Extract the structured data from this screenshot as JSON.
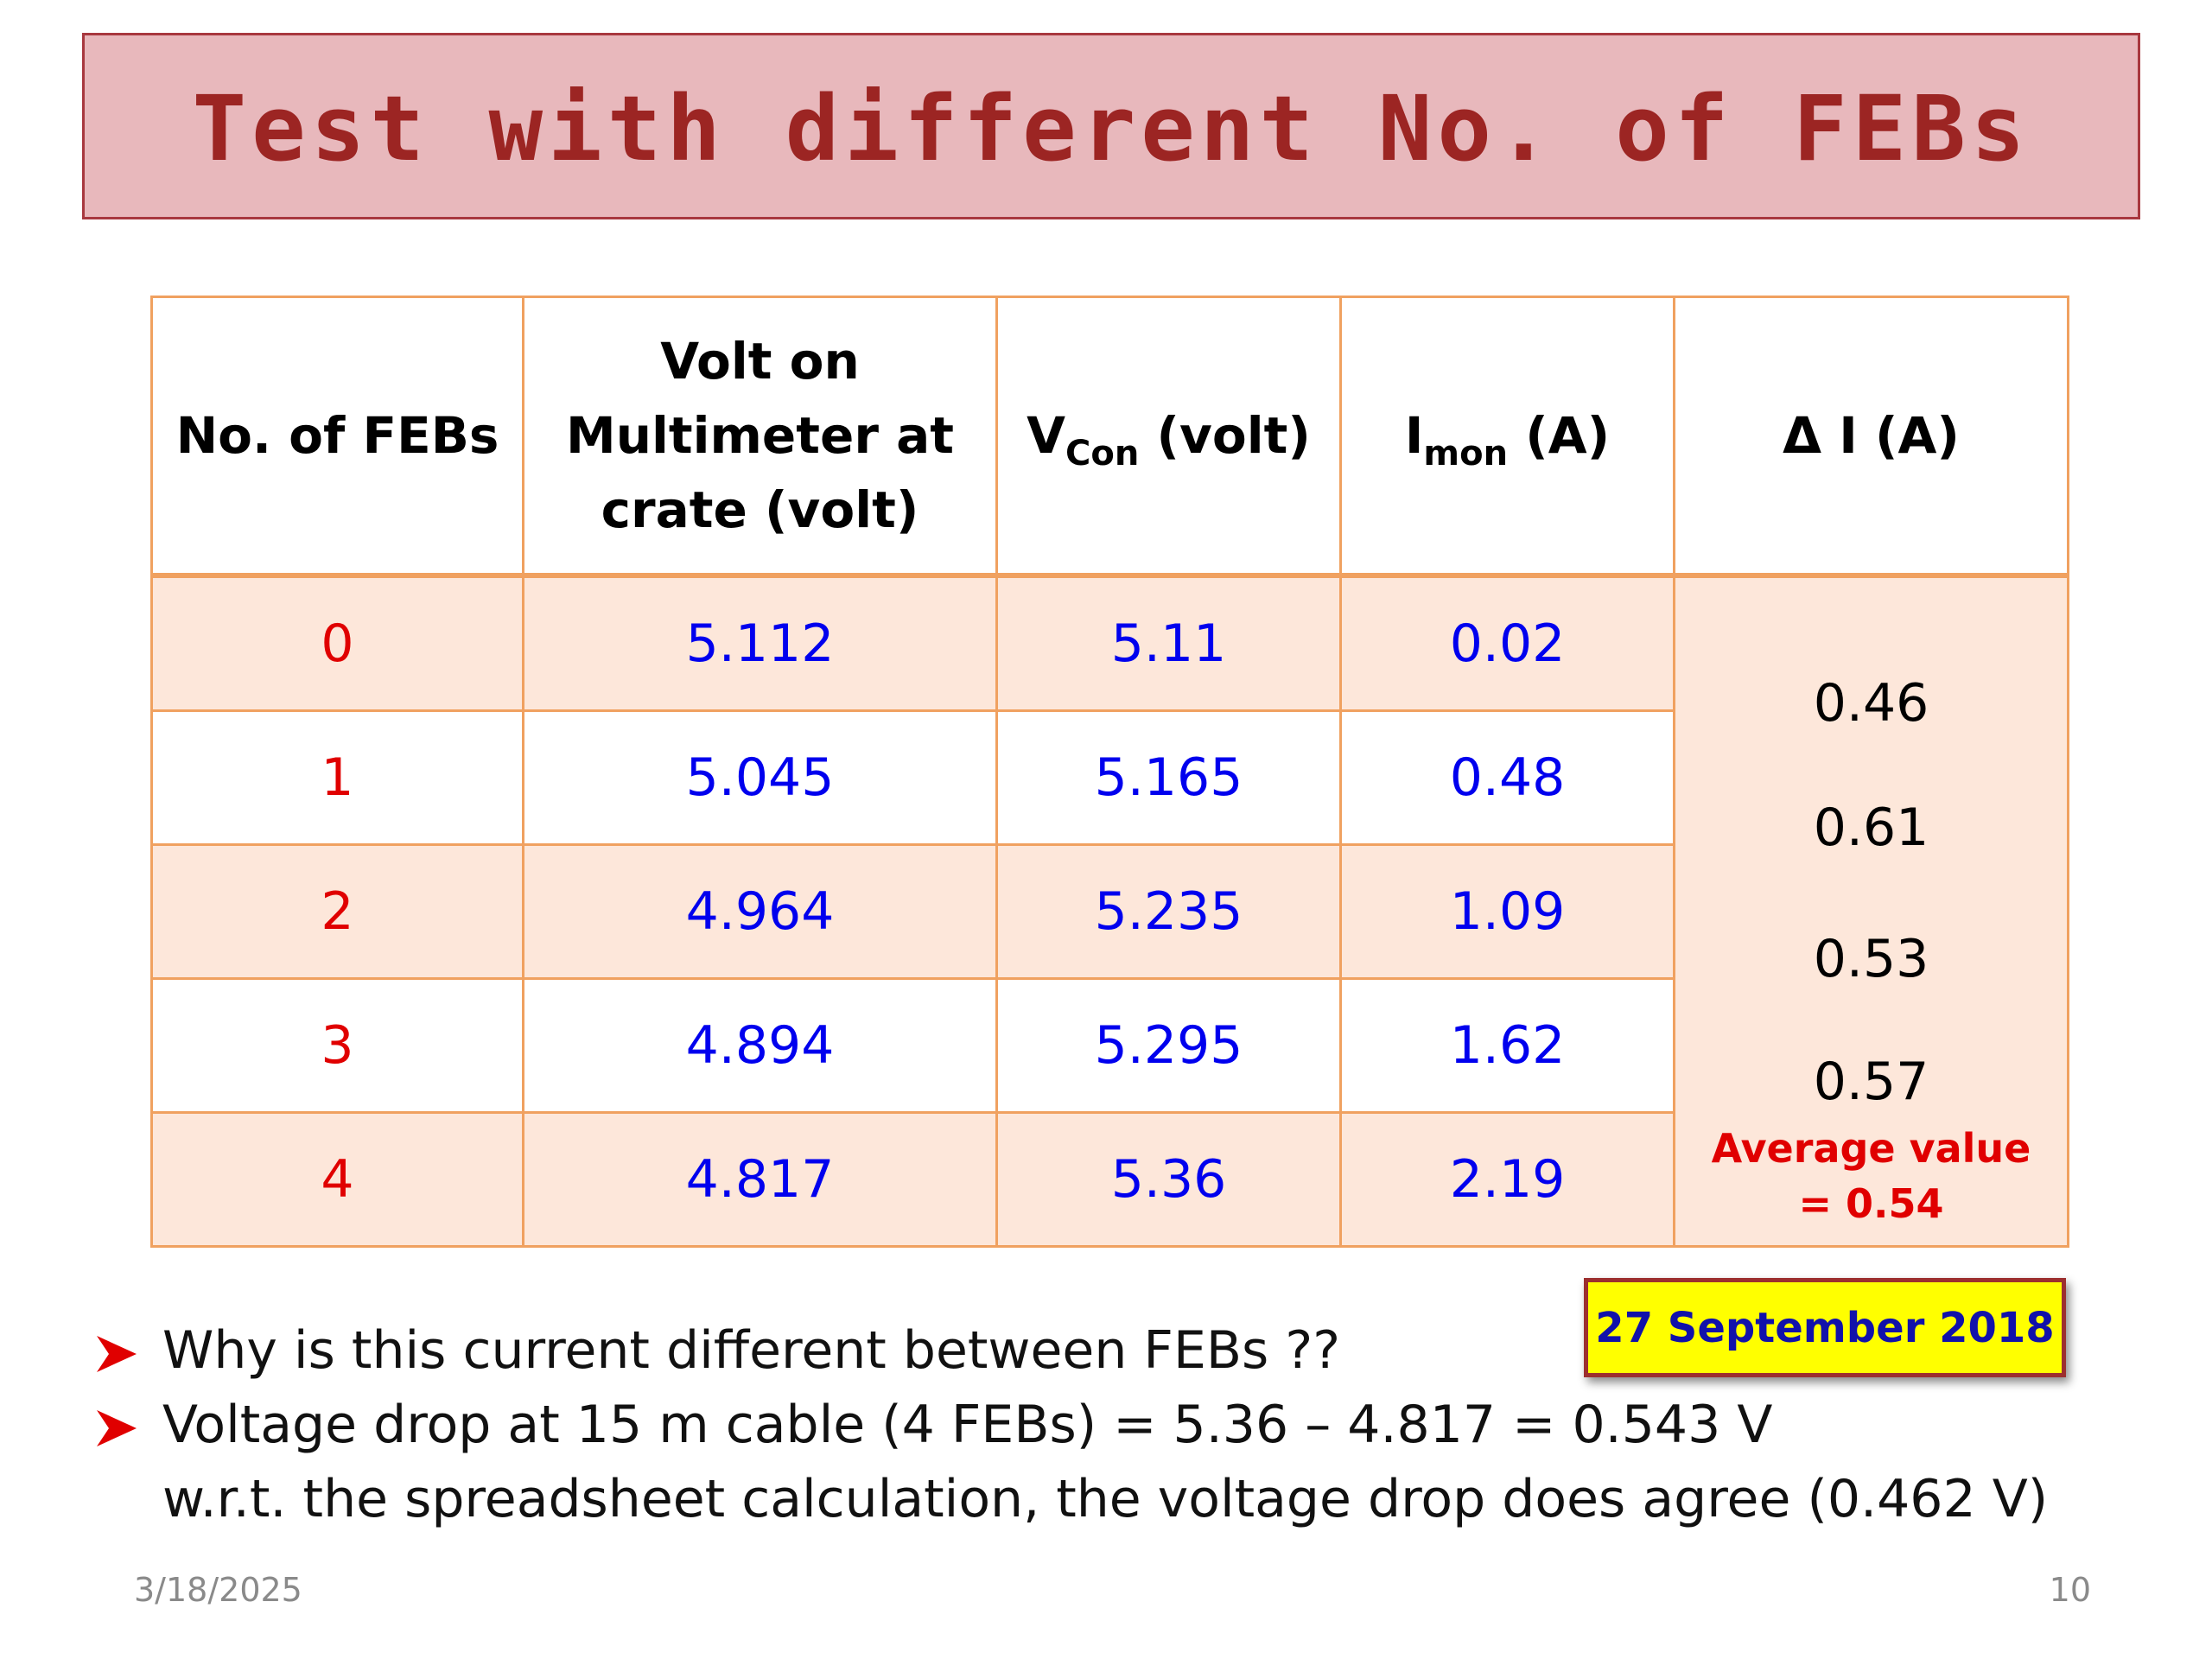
{
  "slide": {
    "title": "Test with different No. of FEBs"
  },
  "table": {
    "headers": {
      "febs": "No. of FEBs",
      "multimeter": [
        "Volt on",
        "Multimeter at",
        "crate (volt)"
      ],
      "vcon_main": "V",
      "vcon_sub": "Con",
      "vcon_unit": " (volt)",
      "imon_main": "I",
      "imon_sub": "mon",
      "imon_unit": " (A)",
      "delta": "Δ I (A)"
    },
    "rows": [
      {
        "febs": "0",
        "multimeter": "5.112",
        "vcon": "5.11",
        "imon": "0.02"
      },
      {
        "febs": "1",
        "multimeter": "5.045",
        "vcon": "5.165",
        "imon": "0.48"
      },
      {
        "febs": "2",
        "multimeter": "4.964",
        "vcon": "5.235",
        "imon": "1.09"
      },
      {
        "febs": "3",
        "multimeter": "4.894",
        "vcon": "5.295",
        "imon": "1.62"
      },
      {
        "febs": "4",
        "multimeter": "4.817",
        "vcon": "5.36",
        "imon": "2.19"
      }
    ],
    "deltas": [
      "0.46",
      "0.61",
      "0.53",
      "0.57"
    ],
    "average_line1": "Average value",
    "average_line2": "= 0.54"
  },
  "date_badge": "27 September 2018",
  "bullets": [
    "Why is this current different between FEBs ??",
    "Voltage drop at 15 m cable (4 FEBs) = 5.36 – 4.817 = 0.543 V"
  ],
  "note": "w.r.t. the spreadsheet calculation, the voltage drop does agree (0.462 V)",
  "footer": {
    "date": "3/18/2025",
    "page": "10"
  },
  "colors": {
    "title_bg": "#e8b8bc",
    "title_text": "#9c2523",
    "table_border": "#f0a160",
    "row_tint": "#fde7da",
    "feb_red": "#e00000",
    "value_blue": "#0000ee",
    "badge_yellow": "#ffff00"
  }
}
